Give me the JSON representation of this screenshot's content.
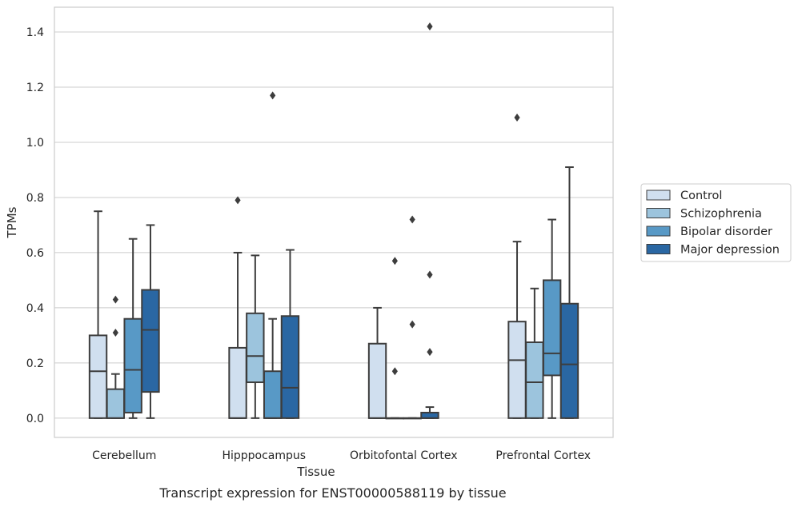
{
  "chart_data": {
    "type": "box",
    "xlabel": "Tissue",
    "ylabel": "TPMs",
    "caption": "Transcript expression for ENST00000588119 by tissue",
    "ylim": [
      -0.07,
      1.49
    ],
    "yticks": [
      0.0,
      0.2,
      0.4,
      0.6,
      0.8,
      1.0,
      1.2,
      1.4
    ],
    "ytick_labels": [
      "0.0",
      "0.2",
      "0.4",
      "0.6",
      "0.8",
      "1.0",
      "1.2",
      "1.4"
    ],
    "grid": "horizontal",
    "legend_position": "right",
    "categories": [
      "Cerebellum",
      "Hipppocampus",
      "Orbitofontal Cortex",
      "Prefrontal Cortex"
    ],
    "series": [
      {
        "name": "Control",
        "color": "#d0dfef",
        "boxes": [
          {
            "whislo": 0.0,
            "q1": 0.0,
            "med": 0.17,
            "q3": 0.3,
            "whishi": 0.75,
            "fliers": []
          },
          {
            "whislo": 0.0,
            "q1": 0.0,
            "med": 0.0,
            "q3": 0.255,
            "whishi": 0.6,
            "fliers": [
              0.79
            ]
          },
          {
            "whislo": 0.0,
            "q1": 0.0,
            "med": 0.0,
            "q3": 0.27,
            "whishi": 0.4,
            "fliers": []
          },
          {
            "whislo": 0.0,
            "q1": 0.0,
            "med": 0.21,
            "q3": 0.35,
            "whishi": 0.64,
            "fliers": [
              1.09
            ]
          }
        ]
      },
      {
        "name": "Schizophrenia",
        "color": "#9cc4dd",
        "boxes": [
          {
            "whislo": 0.0,
            "q1": 0.0,
            "med": 0.0,
            "q3": 0.105,
            "whishi": 0.16,
            "fliers": [
              0.31,
              0.43
            ]
          },
          {
            "whislo": 0.0,
            "q1": 0.13,
            "med": 0.225,
            "q3": 0.38,
            "whishi": 0.59,
            "fliers": []
          },
          {
            "whislo": 0.0,
            "q1": 0.0,
            "med": 0.0,
            "q3": 0.0,
            "whishi": 0.0,
            "fliers": [
              0.17,
              0.57
            ]
          },
          {
            "whislo": 0.0,
            "q1": 0.0,
            "med": 0.13,
            "q3": 0.275,
            "whishi": 0.47,
            "fliers": []
          }
        ]
      },
      {
        "name": "Bipolar disorder",
        "color": "#5899c6",
        "boxes": [
          {
            "whislo": 0.0,
            "q1": 0.02,
            "med": 0.175,
            "q3": 0.36,
            "whishi": 0.65,
            "fliers": []
          },
          {
            "whislo": 0.0,
            "q1": 0.0,
            "med": 0.0,
            "q3": 0.17,
            "whishi": 0.36,
            "fliers": [
              1.17
            ]
          },
          {
            "whislo": 0.0,
            "q1": 0.0,
            "med": 0.0,
            "q3": 0.0,
            "whishi": 0.0,
            "fliers": [
              0.34,
              0.72
            ]
          },
          {
            "whislo": 0.0,
            "q1": 0.155,
            "med": 0.235,
            "q3": 0.5,
            "whishi": 0.72,
            "fliers": []
          }
        ]
      },
      {
        "name": "Major depression",
        "color": "#2a67a3",
        "boxes": [
          {
            "whislo": 0.0,
            "q1": 0.095,
            "med": 0.32,
            "q3": 0.465,
            "whishi": 0.7,
            "fliers": []
          },
          {
            "whislo": 0.0,
            "q1": 0.0,
            "med": 0.11,
            "q3": 0.37,
            "whishi": 0.61,
            "fliers": []
          },
          {
            "whislo": 0.0,
            "q1": 0.0,
            "med": 0.0,
            "q3": 0.02,
            "whishi": 0.04,
            "fliers": [
              0.24,
              0.52,
              1.42
            ]
          },
          {
            "whislo": 0.0,
            "q1": 0.0,
            "med": 0.195,
            "q3": 0.415,
            "whishi": 0.91,
            "fliers": []
          }
        ]
      }
    ]
  }
}
